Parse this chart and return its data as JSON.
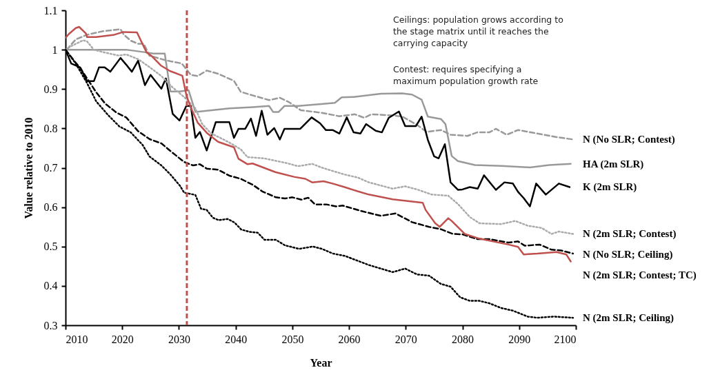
{
  "chart_data": {
    "type": "line",
    "xlabel": "Year",
    "ylabel": "Value relative to 2010",
    "xlim": [
      2010,
      2100
    ],
    "xticks": [
      2010,
      2020,
      2030,
      2040,
      2050,
      2060,
      2070,
      2080,
      2090,
      2100
    ],
    "ylim": [
      0.3,
      1.1
    ],
    "yticks": [
      0.3,
      0.4,
      0.5,
      0.6,
      0.7,
      0.8,
      0.9,
      1,
      1.1
    ],
    "grid": false,
    "annotations": [
      "Ceilings: population grows according to\nthe stage matrix until it reaches the\ncarrying capacity",
      "Contest: requires specifying a\nmaximum population growth rate"
    ],
    "ref_lines": [
      {
        "axis": "x",
        "value": 2031.4,
        "color": "#c0504d",
        "line_style": "dashed"
      }
    ],
    "series": [
      {
        "name": "N (No SLR; Contest)",
        "color": "#999999",
        "line_style": "dashed",
        "x": [
          2010.2,
          2011.8,
          2013.8,
          2016.6,
          2019.7,
          2020.3,
          2021.5,
          2022.8,
          2023.8,
          2024.8,
          2027.7,
          2030.5,
          2032.1,
          2033.3,
          2034.9,
          2036.9,
          2039.7,
          2040.9,
          2043.0,
          2045.9,
          2047.8,
          2049.5,
          2051.5,
          2055.1,
          2058.3,
          2061.0,
          2062.7,
          2063.9,
          2067.7,
          2069.4,
          2072.0,
          2073.7,
          2076.2,
          2077.9,
          2080.9,
          2082.6,
          2084.7,
          2085.9,
          2087.8,
          2089.8,
          2093.2,
          2096.6,
          2099.5
        ],
        "values": [
          1.0,
          1.026,
          1.038,
          1.047,
          1.052,
          1.038,
          1.023,
          1.015,
          1.015,
          0.985,
          0.973,
          0.965,
          0.936,
          0.933,
          0.947,
          0.939,
          0.921,
          0.893,
          0.884,
          0.872,
          0.878,
          0.866,
          0.846,
          0.84,
          0.831,
          0.836,
          0.827,
          0.836,
          0.833,
          0.83,
          0.809,
          0.791,
          0.796,
          0.784,
          0.781,
          0.79,
          0.79,
          0.799,
          0.784,
          0.796,
          0.787,
          0.778,
          0.772
        ]
      },
      {
        "name": "HA (2m SLR)",
        "color": "#999999",
        "line_style": "solid",
        "x": [
          2010,
          2020.7,
          2024.3,
          2025.5,
          2027.5,
          2028.5,
          2030.1,
          2031.7,
          2032.9,
          2034.9,
          2038.9,
          2043.0,
          2045.9,
          2046.6,
          2047.6,
          2048.6,
          2051.0,
          2055.1,
          2057.5,
          2058.7,
          2060.8,
          2065.6,
          2069.4,
          2071.1,
          2072.8,
          2073.9,
          2076.2,
          2077.0,
          2078.1,
          2079.2,
          2082.2,
          2086.8,
          2091.9,
          2095.3,
          2099.1
        ],
        "values": [
          1.0,
          1.0,
          0.993,
          0.99,
          0.99,
          0.894,
          0.894,
          0.897,
          0.842,
          0.845,
          0.851,
          0.854,
          0.857,
          0.842,
          0.842,
          0.857,
          0.857,
          0.862,
          0.865,
          0.879,
          0.88,
          0.888,
          0.889,
          0.886,
          0.873,
          0.83,
          0.824,
          0.811,
          0.73,
          0.717,
          0.707,
          0.705,
          0.701,
          0.707,
          0.71
        ]
      },
      {
        "name": "K (2m SLR)",
        "color": "#000000",
        "line_style": "solid",
        "x": [
          2010,
          2011,
          2012.6,
          2013.8,
          2015,
          2015.9,
          2016.9,
          2017.9,
          2019.7,
          2020.7,
          2021.7,
          2022.8,
          2024.0,
          2025.0,
          2026.9,
          2027.7,
          2028.9,
          2030.1,
          2031.3,
          2032.1,
          2032.9,
          2033.7,
          2034.9,
          2036.5,
          2038.9,
          2039.7,
          2040.5,
          2041.7,
          2042.7,
          2043.6,
          2044.6,
          2045.6,
          2046.8,
          2047.8,
          2048.6,
          2051.4,
          2053.4,
          2054.9,
          2055.9,
          2057.1,
          2058.3,
          2059.6,
          2060.8,
          2062.0,
          2063.0,
          2064.7,
          2065.8,
          2067.0,
          2068.8,
          2069.9,
          2071.8,
          2072.8,
          2073.9,
          2075.0,
          2075.8,
          2076.9,
          2077.9,
          2079.2,
          2080.0,
          2081.3,
          2082.7,
          2083.8,
          2085.9,
          2087.4,
          2088.9,
          2089.8,
          2090.8,
          2091.9,
          2093.0,
          2094.7,
          2097.0,
          2098.9
        ],
        "values": [
          1.0,
          0.965,
          0.955,
          0.92,
          0.92,
          0.955,
          0.955,
          0.944,
          0.979,
          0.962,
          0.944,
          0.972,
          0.91,
          0.936,
          0.901,
          0.927,
          0.837,
          0.82,
          0.857,
          0.857,
          0.776,
          0.791,
          0.744,
          0.816,
          0.816,
          0.776,
          0.799,
          0.799,
          0.825,
          0.781,
          0.845,
          0.784,
          0.801,
          0.772,
          0.799,
          0.799,
          0.828,
          0.813,
          0.796,
          0.796,
          0.787,
          0.828,
          0.79,
          0.787,
          0.811,
          0.794,
          0.79,
          0.827,
          0.843,
          0.806,
          0.806,
          0.83,
          0.771,
          0.729,
          0.724,
          0.76,
          0.663,
          0.644,
          0.645,
          0.651,
          0.647,
          0.681,
          0.644,
          0.663,
          0.66,
          0.639,
          0.623,
          0.602,
          0.66,
          0.632,
          0.66,
          0.651
        ]
      },
      {
        "name": "N (2m SLR; Contest)",
        "color": "#aaaaaa",
        "line_style": "dotted",
        "x": [
          2010,
          2011,
          2013.1,
          2013.8,
          2015,
          2016.6,
          2019.4,
          2020.7,
          2022.8,
          2024.8,
          2026.9,
          2028.9,
          2030.9,
          2032.9,
          2034.1,
          2035.7,
          2037.3,
          2038.9,
          2040.9,
          2042.1,
          2045.0,
          2049.0,
          2051.0,
          2053.5,
          2055.1,
          2057.1,
          2059.2,
          2061.6,
          2063.5,
          2067.7,
          2069.9,
          2072.0,
          2074.6,
          2077.5,
          2079.2,
          2081.3,
          2083.0,
          2086.8,
          2089.3,
          2091.5,
          2094.0,
          2095.7,
          2097.0,
          2099.5
        ],
        "values": [
          1.0,
          1.009,
          1.024,
          1.021,
          1.0,
          0.994,
          0.985,
          0.988,
          0.976,
          0.956,
          0.933,
          0.904,
          0.88,
          0.851,
          0.811,
          0.787,
          0.776,
          0.764,
          0.747,
          0.727,
          0.724,
          0.712,
          0.704,
          0.71,
          0.701,
          0.692,
          0.683,
          0.675,
          0.663,
          0.647,
          0.653,
          0.645,
          0.632,
          0.629,
          0.608,
          0.575,
          0.559,
          0.557,
          0.565,
          0.553,
          0.547,
          0.532,
          0.538,
          0.532
        ]
      },
      {
        "name": "N (No SLR; Ceiling)",
        "color": "#000000",
        "line_style": "dashed",
        "x": [
          2010,
          2011.4,
          2012.6,
          2013.8,
          2015.4,
          2017.0,
          2019.0,
          2020.7,
          2022.8,
          2024.8,
          2026.9,
          2028.9,
          2030.9,
          2032.5,
          2033.7,
          2034.9,
          2036.9,
          2038.9,
          2040.9,
          2043.0,
          2044.7,
          2047.1,
          2048.7,
          2050.0,
          2051.6,
          2052.8,
          2054.0,
          2056.0,
          2057.7,
          2058.9,
          2062.2,
          2065.6,
          2068.2,
          2071.1,
          2074.1,
          2076.2,
          2078.3,
          2080.0,
          2082.6,
          2084.7,
          2088.1,
          2089.8,
          2091.0,
          2093.6,
          2095.7,
          2097.4,
          2099.5
        ],
        "values": [
          1.0,
          0.974,
          0.953,
          0.927,
          0.892,
          0.863,
          0.84,
          0.828,
          0.793,
          0.773,
          0.762,
          0.738,
          0.715,
          0.706,
          0.709,
          0.698,
          0.695,
          0.68,
          0.672,
          0.657,
          0.64,
          0.625,
          0.622,
          0.625,
          0.619,
          0.624,
          0.607,
          0.607,
          0.602,
          0.604,
          0.59,
          0.578,
          0.584,
          0.562,
          0.55,
          0.544,
          0.532,
          0.531,
          0.519,
          0.519,
          0.51,
          0.513,
          0.502,
          0.505,
          0.492,
          0.49,
          0.482
        ]
      },
      {
        "name": "N (2m SLR; Contest; TC)",
        "color": "#c0504d",
        "line_style": "solid",
        "x": [
          2010,
          2010.6,
          2011.8,
          2012.4,
          2013.6,
          2013.8,
          2015.4,
          2018.6,
          2020.2,
          2022.6,
          2024.3,
          2025.2,
          2026.8,
          2028.4,
          2030.6,
          2031.3,
          2032.1,
          2033.3,
          2034.9,
          2036.9,
          2039.7,
          2040.5,
          2042.1,
          2043.0,
          2047.0,
          2050.3,
          2052.3,
          2053.5,
          2055.5,
          2057.1,
          2059.2,
          2061.6,
          2063.5,
          2067.7,
          2073.0,
          2073.5,
          2075.2,
          2076.0,
          2076.6,
          2077.5,
          2078.1,
          2080.4,
          2083.0,
          2088.1,
          2089.8,
          2090.8,
          2093.2,
          2096.6,
          2098.3,
          2099.1
        ],
        "values": [
          1.03,
          1.04,
          1.055,
          1.058,
          1.041,
          1.032,
          1.032,
          1.038,
          1.045,
          1.044,
          0.993,
          0.984,
          0.96,
          0.946,
          0.934,
          0.885,
          0.853,
          0.815,
          0.789,
          0.766,
          0.752,
          0.723,
          0.709,
          0.711,
          0.689,
          0.677,
          0.672,
          0.663,
          0.666,
          0.66,
          0.651,
          0.64,
          0.632,
          0.62,
          0.611,
          0.593,
          0.559,
          0.55,
          0.559,
          0.572,
          0.565,
          0.532,
          0.52,
          0.505,
          0.499,
          0.48,
          0.482,
          0.486,
          0.48,
          0.462
        ]
      },
      {
        "name": "N (2m SLR; Ceiling)",
        "color": "#000000",
        "line_style": "dotted",
        "x": [
          2010,
          2011.8,
          2013.8,
          2015.4,
          2017.5,
          2019.5,
          2021.5,
          2023.6,
          2024.8,
          2026.9,
          2028.5,
          2030.2,
          2030.9,
          2032.9,
          2033.9,
          2034.9,
          2036.0,
          2037.0,
          2038.6,
          2039.8,
          2041.0,
          2042.6,
          2043.9,
          2045.1,
          2047.1,
          2048.7,
          2051.2,
          2053.6,
          2055.2,
          2057.2,
          2059.3,
          2063.5,
          2067.7,
          2069.9,
          2072.0,
          2074.1,
          2076.2,
          2077.9,
          2079.6,
          2081.3,
          2083.0,
          2084.7,
          2086.8,
          2088.9,
          2091.5,
          2093.2,
          2096.1,
          2099.5
        ],
        "values": [
          1.0,
          0.965,
          0.915,
          0.869,
          0.834,
          0.805,
          0.79,
          0.758,
          0.729,
          0.706,
          0.683,
          0.654,
          0.637,
          0.631,
          0.596,
          0.593,
          0.573,
          0.567,
          0.57,
          0.561,
          0.543,
          0.537,
          0.535,
          0.517,
          0.517,
          0.503,
          0.494,
          0.5,
          0.494,
          0.482,
          0.476,
          0.453,
          0.435,
          0.444,
          0.429,
          0.426,
          0.405,
          0.398,
          0.371,
          0.362,
          0.362,
          0.356,
          0.344,
          0.337,
          0.322,
          0.319,
          0.322,
          0.319
        ]
      }
    ]
  }
}
